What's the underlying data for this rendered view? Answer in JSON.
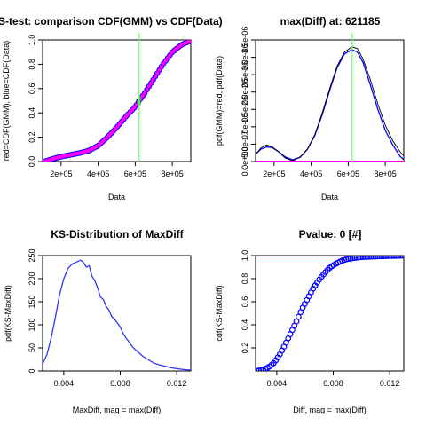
{
  "chart_data": [
    {
      "type": "scatter",
      "title": "KS-test: comparison CDF(GMM) vs CDF(Data)",
      "xlabel": "Data",
      "ylabel": "red=CDF(GMM), blue=CDF(Data)",
      "xlim": [
        100000,
        900000
      ],
      "ylim": [
        0,
        1
      ],
      "x_ticks": [
        {
          "v": 200000,
          "label": "2e+05"
        },
        {
          "v": 400000,
          "label": "4e+05"
        },
        {
          "v": 600000,
          "label": "6e+05"
        },
        {
          "v": 800000,
          "label": "8e+05"
        }
      ],
      "y_ticks": [
        {
          "v": 0,
          "label": "0.0"
        },
        {
          "v": 0.2,
          "label": "0.2"
        },
        {
          "v": 0.4,
          "label": "0.4"
        },
        {
          "v": 0.6,
          "label": "0.6"
        },
        {
          "v": 0.8,
          "label": "0.8"
        },
        {
          "v": 1.0,
          "label": "1.0"
        }
      ],
      "series": [
        {
          "color": "#0000ff",
          "x": [
            110000,
            150000,
            200000,
            250000,
            300000,
            350000,
            400000,
            450000,
            500000,
            550000,
            600000,
            621185,
            650000,
            700000,
            750000,
            800000,
            850000,
            900000
          ],
          "y": [
            0.0,
            0.02,
            0.04,
            0.055,
            0.07,
            0.09,
            0.13,
            0.2,
            0.28,
            0.37,
            0.45,
            0.5,
            0.56,
            0.68,
            0.8,
            0.9,
            0.96,
            0.995
          ]
        },
        {
          "color": "#ff00ff",
          "x": [
            110000,
            150000,
            200000,
            250000,
            300000,
            350000,
            400000,
            450000,
            500000,
            550000,
            600000,
            621185,
            650000,
            700000,
            750000,
            800000,
            850000,
            900000
          ],
          "y": [
            0.0,
            0.02,
            0.04,
            0.055,
            0.07,
            0.09,
            0.13,
            0.2,
            0.28,
            0.37,
            0.45,
            0.5,
            0.56,
            0.68,
            0.8,
            0.9,
            0.96,
            0.995
          ]
        }
      ],
      "vline": {
        "x": 621185,
        "color": "#66ff66"
      }
    },
    {
      "type": "line",
      "title": "max(Diff) at: 621185",
      "xlabel": "Data",
      "ylabel": "pdf(GMM)=red, pdf(Data)",
      "xlim": [
        100000,
        900000
      ],
      "ylim": [
        0,
        3.5e-06
      ],
      "x_ticks": [
        {
          "v": 200000,
          "label": "2e+05"
        },
        {
          "v": 400000,
          "label": "4e+05"
        },
        {
          "v": 600000,
          "label": "6e+05"
        },
        {
          "v": 800000,
          "label": "8e+05"
        }
      ],
      "y_ticks": [
        {
          "v": 0,
          "label": "0.0e+00"
        },
        {
          "v": 5e-07,
          "label": "5.0e-07"
        },
        {
          "v": 1e-06,
          "label": "1.0e-06"
        },
        {
          "v": 1.5e-06,
          "label": "1.5e-06"
        },
        {
          "v": 2e-06,
          "label": "2.0e-06"
        },
        {
          "v": 2.5e-06,
          "label": "2.5e-06"
        },
        {
          "v": 3e-06,
          "label": "3.0e-06"
        },
        {
          "v": 3.5e-06,
          "label": "3.5e-06"
        }
      ],
      "series": [
        {
          "color": "#0000ff",
          "x": [
            100000,
            130000,
            160000,
            190000,
            220000,
            260000,
            300000,
            340000,
            380000,
            420000,
            460000,
            500000,
            540000,
            580000,
            620000,
            650000,
            680000,
            720000,
            760000,
            800000,
            840000,
            880000,
            900000
          ],
          "y": [
            2.2e-07,
            3.6e-07,
            4.2e-07,
            4e-07,
            3e-07,
            1.3e-07,
            5e-08,
            1.2e-07,
            3.5e-07,
            7.5e-07,
            1.35e-06,
            2.05e-06,
            2.7e-06,
            3.1e-06,
            3.22e-06,
            3.15e-06,
            2.85e-06,
            2.2e-06,
            1.5e-06,
            9e-07,
            4.8e-07,
            1.5e-07,
            6e-08
          ]
        },
        {
          "color": "#000000",
          "x": [
            100000,
            130000,
            160000,
            190000,
            220000,
            260000,
            300000,
            340000,
            380000,
            420000,
            460000,
            500000,
            540000,
            580000,
            620000,
            650000,
            680000,
            720000,
            760000,
            800000,
            840000,
            880000,
            900000
          ],
          "y": [
            2e-07,
            4e-07,
            4.8e-07,
            4.2e-07,
            3e-07,
            1e-07,
            2e-08,
            1.3e-07,
            3.6e-07,
            7.8e-07,
            1.4e-06,
            2.1e-06,
            2.75e-06,
            3.15e-06,
            3.3e-06,
            3.25e-06,
            2.95e-06,
            2.35e-06,
            1.65e-06,
            1.05e-06,
            6e-07,
            2.8e-07,
            1.6e-07
          ]
        },
        {
          "color": "#ff00ff",
          "x": [
            100000,
            900000
          ],
          "y": [
            1e-08,
            1e-08
          ]
        }
      ],
      "vline": {
        "x": 621185,
        "color": "#66ff66"
      }
    },
    {
      "type": "line",
      "title": "KS-Distribution of MaxDiff",
      "xlabel": "MaxDiff, mag = max(Diff)",
      "ylabel": "pdf(KS-MaxDiff)",
      "xlim": [
        0.0025,
        0.013
      ],
      "ylim": [
        0,
        250
      ],
      "x_ticks": [
        {
          "v": 0.004,
          "label": "0.004"
        },
        {
          "v": 0.008,
          "label": "0.008"
        },
        {
          "v": 0.012,
          "label": "0.012"
        }
      ],
      "y_ticks": [
        {
          "v": 0,
          "label": "0"
        },
        {
          "v": 50,
          "label": "50"
        },
        {
          "v": 100,
          "label": "100"
        },
        {
          "v": 150,
          "label": "150"
        },
        {
          "v": 200,
          "label": "200"
        },
        {
          "v": 250,
          "label": "250"
        }
      ],
      "series": [
        {
          "color": "#3333ff",
          "x": [
            0.0025,
            0.0028,
            0.0031,
            0.0034,
            0.0037,
            0.004,
            0.0043,
            0.0046,
            0.0049,
            0.0052,
            0.0054,
            0.0056,
            0.0058,
            0.006,
            0.0062,
            0.0064,
            0.0066,
            0.0068,
            0.007,
            0.0072,
            0.0074,
            0.0076,
            0.0078,
            0.008,
            0.0082,
            0.0084,
            0.0086,
            0.0088,
            0.009,
            0.0093,
            0.0096,
            0.01,
            0.0104,
            0.0108,
            0.0112,
            0.0116,
            0.012,
            0.0125,
            0.013
          ],
          "y": [
            15,
            35,
            70,
            115,
            165,
            200,
            222,
            232,
            236,
            240,
            235,
            225,
            228,
            205,
            196,
            180,
            160,
            155,
            140,
            132,
            118,
            112,
            104,
            95,
            82,
            72,
            64,
            55,
            48,
            40,
            32,
            24,
            17,
            13,
            10,
            7,
            5,
            3,
            2
          ]
        }
      ]
    },
    {
      "type": "scatter",
      "title": "Pvalue: 0 [#]",
      "xlabel": "Diff, mag = max(Diff)",
      "ylabel": "cdf(KS-MaxDiff)",
      "xlim": [
        0.0025,
        0.013
      ],
      "ylim": [
        0,
        1
      ],
      "x_ticks": [
        {
          "v": 0.004,
          "label": "0.004"
        },
        {
          "v": 0.008,
          "label": "0.008"
        },
        {
          "v": 0.012,
          "label": "0.012"
        }
      ],
      "y_ticks": [
        {
          "v": 0.2,
          "label": "0.2"
        },
        {
          "v": 0.4,
          "label": "0.4"
        },
        {
          "v": 0.6,
          "label": "0.6"
        },
        {
          "v": 0.8,
          "label": "0.8"
        },
        {
          "v": 1.0,
          "label": "1.0"
        }
      ],
      "series": [
        {
          "color": "#0000ff",
          "x": [
            0.0026,
            0.003,
            0.0034,
            0.0038,
            0.0042,
            0.0046,
            0.005,
            0.0054,
            0.0058,
            0.0062,
            0.0066,
            0.007,
            0.0074,
            0.0078,
            0.0082,
            0.0086,
            0.009,
            0.0095,
            0.01,
            0.0105,
            0.011,
            0.0115,
            0.012,
            0.0125,
            0.0129
          ],
          "y": [
            0.0,
            0.01,
            0.03,
            0.07,
            0.14,
            0.23,
            0.33,
            0.43,
            0.54,
            0.63,
            0.72,
            0.79,
            0.85,
            0.9,
            0.93,
            0.955,
            0.97,
            0.98,
            0.987,
            0.99,
            0.993,
            0.995,
            0.997,
            0.998,
            1.0
          ]
        }
      ],
      "hline": {
        "y": 1.0,
        "color": "#ff00ff"
      }
    }
  ]
}
